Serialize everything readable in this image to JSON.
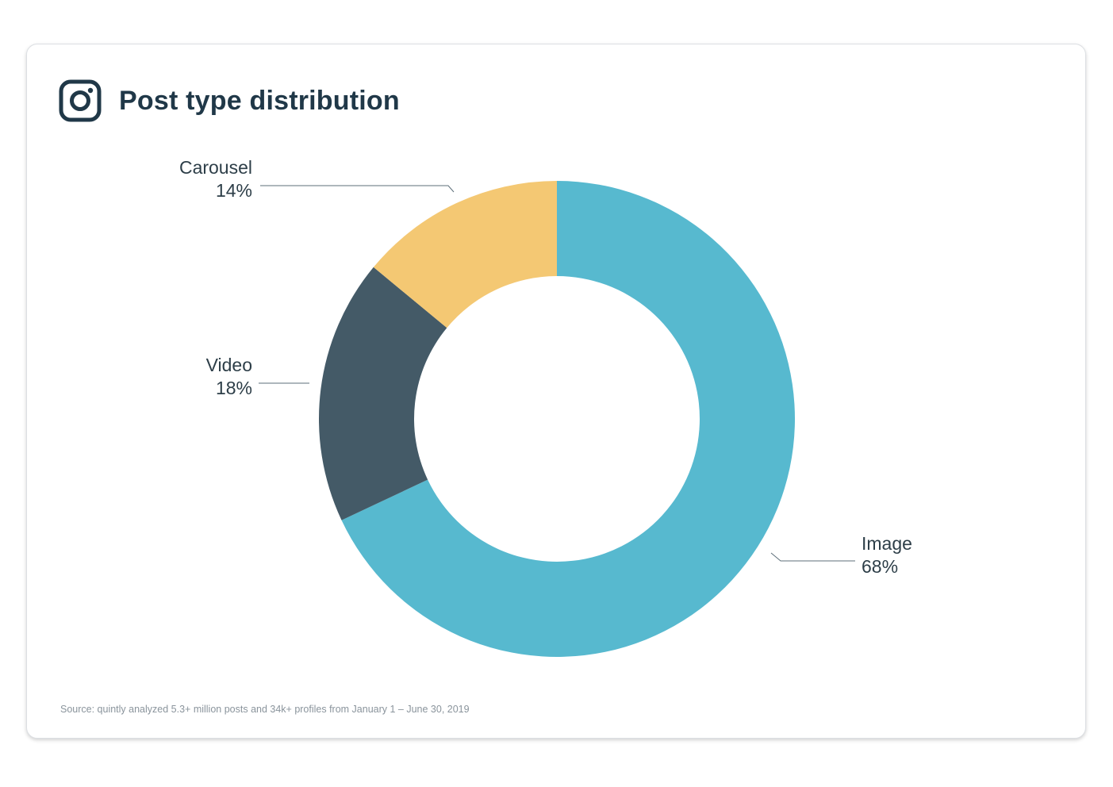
{
  "icon": "instagram-icon",
  "colors": {
    "title": "#203848",
    "label": "#2d3e48",
    "leader": "#5e6f7a",
    "source": "#8a949c"
  },
  "chart_data": {
    "type": "pie",
    "donut": true,
    "title": "Post type distribution",
    "slices": [
      {
        "label": "Image",
        "value": 68,
        "value_label": "68%",
        "color": "#57b9cf"
      },
      {
        "label": "Video",
        "value": 18,
        "value_label": "18%",
        "color": "#445a67"
      },
      {
        "label": "Carousel",
        "value": 14,
        "value_label": "14%",
        "color": "#f4c873"
      }
    ],
    "source": "Source: quintly analyzed 5.3+ million posts and 34k+ profiles from January 1 – June 30, 2019"
  }
}
